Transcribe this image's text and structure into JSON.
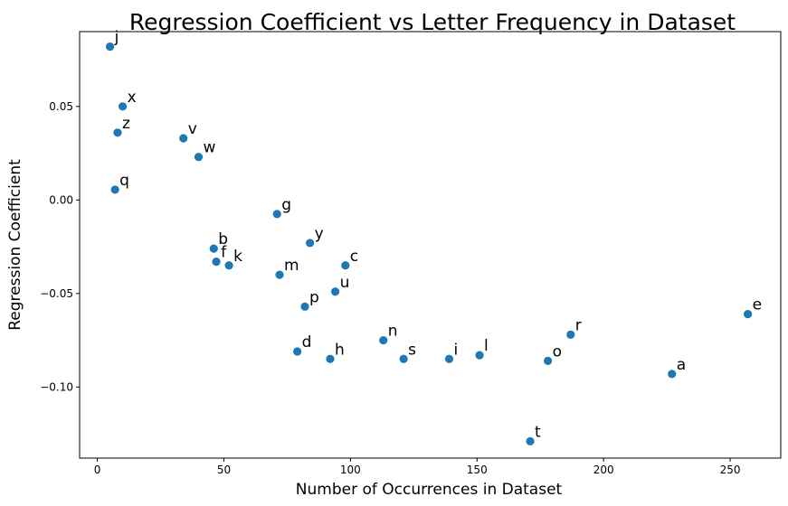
{
  "chart_data": {
    "type": "scatter",
    "title": "Regression Coefficient vs Letter Frequency in Dataset",
    "xlabel": "Number of Occurrences in Dataset",
    "ylabel": "Regression Coefficient",
    "xlim": [
      -7,
      270
    ],
    "ylim": [
      -0.138,
      0.09
    ],
    "xticks": [
      0,
      50,
      100,
      150,
      200,
      250
    ],
    "xtick_labels": [
      "0",
      "50",
      "100",
      "150",
      "200",
      "250"
    ],
    "yticks": [
      0.05,
      0.0,
      -0.05,
      -0.1
    ],
    "ytick_labels": [
      "0.05",
      "0.00",
      "−0.05",
      "−0.10"
    ],
    "grid": false,
    "marker_color": "#1f77b4",
    "points": [
      {
        "label": "j",
        "x": 5,
        "y": 0.082
      },
      {
        "label": "x",
        "x": 10,
        "y": 0.05
      },
      {
        "label": "z",
        "x": 8,
        "y": 0.036
      },
      {
        "label": "q",
        "x": 7,
        "y": 0.0055
      },
      {
        "label": "v",
        "x": 34,
        "y": 0.033
      },
      {
        "label": "w",
        "x": 40,
        "y": 0.023
      },
      {
        "label": "g",
        "x": 71,
        "y": -0.0075
      },
      {
        "label": "b",
        "x": 46,
        "y": -0.026
      },
      {
        "label": "f",
        "x": 47,
        "y": -0.033
      },
      {
        "label": "k",
        "x": 52,
        "y": -0.035
      },
      {
        "label": "y",
        "x": 84,
        "y": -0.023
      },
      {
        "label": "c",
        "x": 98,
        "y": -0.035
      },
      {
        "label": "m",
        "x": 72,
        "y": -0.04
      },
      {
        "label": "u",
        "x": 94,
        "y": -0.049
      },
      {
        "label": "p",
        "x": 82,
        "y": -0.057
      },
      {
        "label": "d",
        "x": 79,
        "y": -0.081
      },
      {
        "label": "h",
        "x": 92,
        "y": -0.085
      },
      {
        "label": "n",
        "x": 113,
        "y": -0.075
      },
      {
        "label": "s",
        "x": 121,
        "y": -0.085
      },
      {
        "label": "i",
        "x": 139,
        "y": -0.085
      },
      {
        "label": "l",
        "x": 151,
        "y": -0.083
      },
      {
        "label": "t",
        "x": 171,
        "y": -0.129
      },
      {
        "label": "o",
        "x": 178,
        "y": -0.086
      },
      {
        "label": "r",
        "x": 187,
        "y": -0.072
      },
      {
        "label": "a",
        "x": 227,
        "y": -0.093
      },
      {
        "label": "e",
        "x": 257,
        "y": -0.061
      }
    ]
  }
}
